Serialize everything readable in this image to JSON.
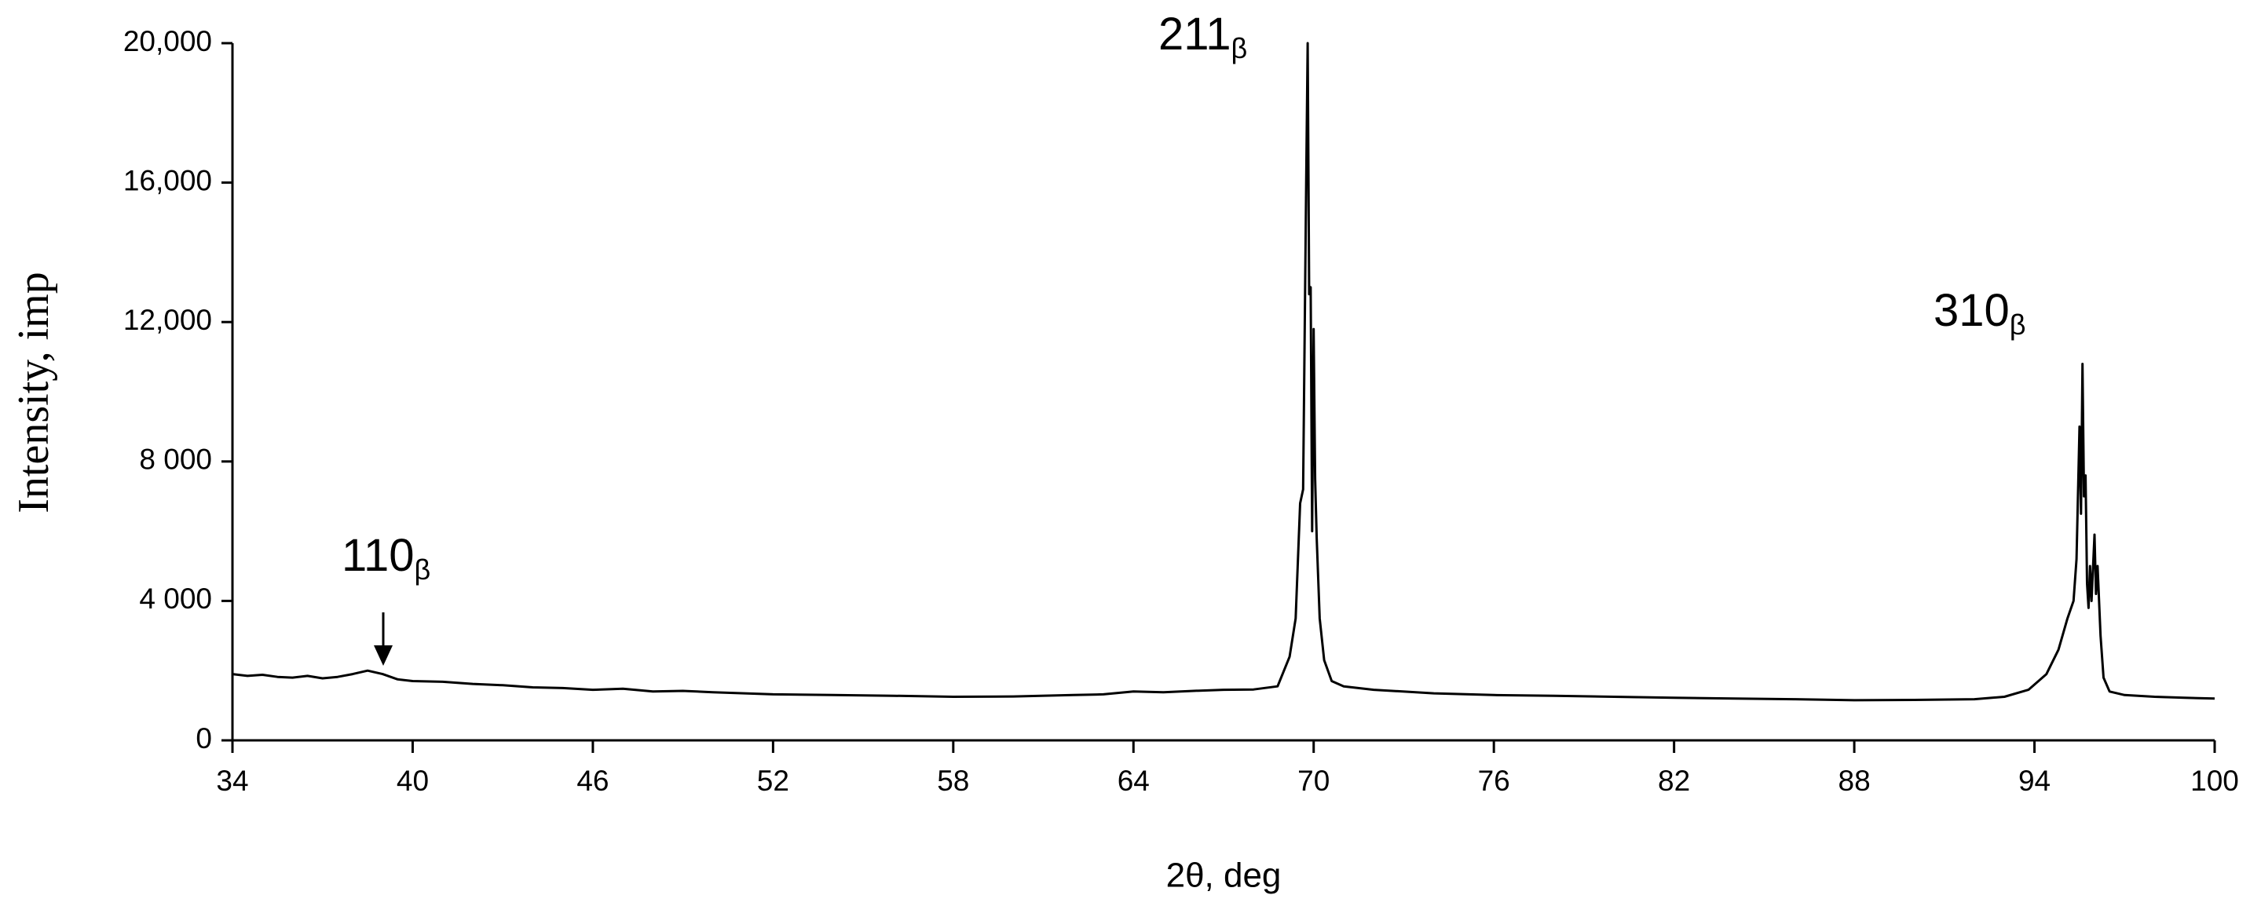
{
  "chart_data": {
    "type": "line",
    "xlabel": "2θ, deg",
    "ylabel": "Intensity, imp",
    "x": [
      34,
      34.5,
      35,
      35.5,
      36,
      36.5,
      37,
      37.5,
      38,
      38.5,
      39,
      39.5,
      40,
      41,
      42,
      43,
      44,
      45,
      46,
      47,
      48,
      49,
      50,
      52,
      54,
      56,
      58,
      60,
      62,
      63,
      64,
      65,
      66,
      67,
      68,
      68.8,
      69.2,
      69.4,
      69.55,
      69.65,
      69.75,
      69.8,
      69.85,
      69.9,
      69.95,
      70.0,
      70.05,
      70.1,
      70.2,
      70.35,
      70.6,
      71,
      72,
      74,
      76,
      78,
      80,
      82,
      84,
      86,
      88,
      90,
      92,
      93,
      93.8,
      94.4,
      94.8,
      95.1,
      95.3,
      95.4,
      95.5,
      95.55,
      95.6,
      95.65,
      95.7,
      95.75,
      95.8,
      95.85,
      95.9,
      96.0,
      96.05,
      96.1,
      96.2,
      96.3,
      96.5,
      97,
      98,
      99,
      100
    ],
    "values": [
      1900,
      1850,
      1880,
      1820,
      1800,
      1850,
      1780,
      1820,
      1900,
      2000,
      1900,
      1750,
      1700,
      1680,
      1620,
      1580,
      1520,
      1500,
      1450,
      1480,
      1400,
      1420,
      1380,
      1320,
      1300,
      1280,
      1250,
      1260,
      1300,
      1320,
      1400,
      1380,
      1420,
      1450,
      1460,
      1550,
      2400,
      3500,
      6800,
      7200,
      16000,
      20000,
      12800,
      13000,
      6000,
      11800,
      7500,
      5800,
      3500,
      2300,
      1700,
      1550,
      1450,
      1350,
      1300,
      1280,
      1250,
      1220,
      1200,
      1180,
      1150,
      1160,
      1180,
      1250,
      1450,
      1900,
      2600,
      3500,
      4000,
      5200,
      9000,
      6500,
      10800,
      7000,
      7600,
      4500,
      3800,
      5000,
      4000,
      5900,
      4200,
      5000,
      3000,
      1800,
      1400,
      1300,
      1250,
      1220,
      1200
    ],
    "color": "#000000",
    "xlim": [
      34,
      100
    ],
    "xticks": [
      34,
      40,
      46,
      52,
      58,
      64,
      70,
      76,
      82,
      88,
      94,
      100
    ],
    "ylim": [
      0,
      20000
    ],
    "yticks": [
      0,
      {
        "value": 4000,
        "label": "4 000"
      },
      {
        "value": 8000,
        "label": "8 000"
      },
      {
        "value": 12000,
        "label": "12,000"
      },
      {
        "value": 16000,
        "label": "16,000"
      },
      {
        "value": 20000,
        "label": "20,000"
      }
    ],
    "annotations": [
      {
        "text": "110",
        "subscript": "β"
      },
      {
        "text": "211",
        "subscript": "β"
      },
      {
        "text": "310",
        "subscript": "β"
      }
    ]
  }
}
